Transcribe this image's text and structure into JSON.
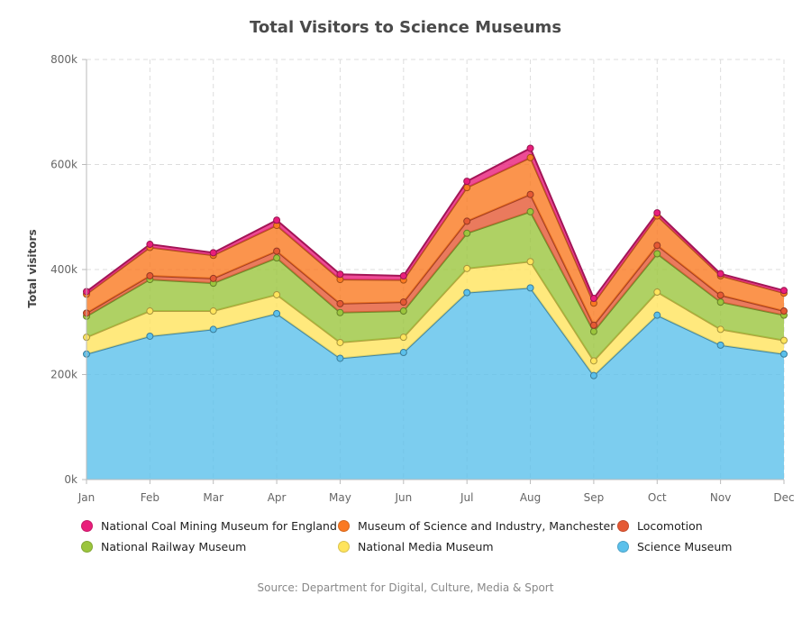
{
  "title": "Total Visitors to Science Museums",
  "source": "Source: Department for Digital, Culture, Media & Sport",
  "chart_data": {
    "type": "area",
    "stacked": true,
    "title": "Total Visitors to Science Museums",
    "xlabel": "",
    "ylabel": "Total visitors",
    "categories": [
      "Jan",
      "Feb",
      "Mar",
      "Apr",
      "May",
      "Jun",
      "Jul",
      "Aug",
      "Sep",
      "Oct",
      "Nov",
      "Dec"
    ],
    "ylim": [
      0,
      800000
    ],
    "yticks": [
      0,
      200000,
      400000,
      600000,
      800000
    ],
    "ytick_labels": [
      "0k",
      "200k",
      "400k",
      "600k",
      "800k"
    ],
    "grid": true,
    "legend_position": "bottom",
    "series": [
      {
        "name": "Science Museum",
        "color": "#5bc0eb",
        "values": [
          239000,
          273000,
          286000,
          316000,
          231000,
          242000,
          356000,
          365000,
          198000,
          313000,
          256000,
          239000
        ]
      },
      {
        "name": "National Media Museum",
        "color": "#ffe45c",
        "values": [
          32000,
          48000,
          35000,
          36000,
          30000,
          29000,
          46000,
          50000,
          28000,
          44000,
          30000,
          26000
        ]
      },
      {
        "name": "National Railway Museum",
        "color": "#9bc53d",
        "values": [
          40000,
          60000,
          53000,
          70000,
          57000,
          50000,
          67000,
          95000,
          56000,
          73000,
          52000,
          48000
        ]
      },
      {
        "name": "Locomotion",
        "color": "#e55934",
        "values": [
          6000,
          7000,
          9000,
          13000,
          17000,
          17000,
          23000,
          33000,
          12000,
          16000,
          13000,
          8000
        ]
      },
      {
        "name": "Museum of Science and Industry, Manchester",
        "color": "#fa7921",
        "values": [
          36000,
          54000,
          44000,
          49000,
          46000,
          42000,
          64000,
          70000,
          42000,
          56000,
          37000,
          34000
        ]
      },
      {
        "name": "National Coal Mining Museum for England",
        "color": "#e91e7b",
        "values": [
          5000,
          6000,
          5000,
          10000,
          10000,
          8000,
          12000,
          18000,
          9000,
          6000,
          4000,
          5000
        ]
      }
    ]
  },
  "legend_order": [
    5,
    4,
    3,
    2,
    1,
    0
  ]
}
